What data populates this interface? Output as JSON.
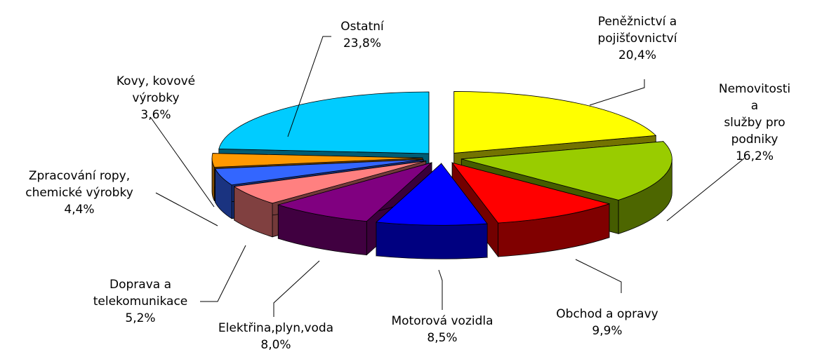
{
  "chart_data": {
    "type": "pie3d",
    "categories": [
      "Peněžnictví a\npojišťovnictví",
      "Nemovitosti a\nslužby pro podniky",
      "Obchod a opravy",
      "Motorová vozidla",
      "Elektřina,plyn,voda",
      "Doprava a\ntelekomunikace",
      "Zpracování ropy,\nchemické výrobky",
      "Kovy, kovové\nvýrobky",
      "Ostatní"
    ],
    "values": [
      20.4,
      16.2,
      9.9,
      8.5,
      8.0,
      5.2,
      4.4,
      3.6,
      23.8
    ],
    "value_labels": [
      "20,4%",
      "16,2%",
      "9,9%",
      "8,5%",
      "8,0%",
      "5,2%",
      "4,4%",
      "3,6%",
      "23,8%"
    ],
    "colors": [
      "#ffff00",
      "#99cc00",
      "#ff0000",
      "#0000ff",
      "#800080",
      "#ff8080",
      "#3366ff",
      "#ff9900",
      "#00ccff"
    ]
  }
}
